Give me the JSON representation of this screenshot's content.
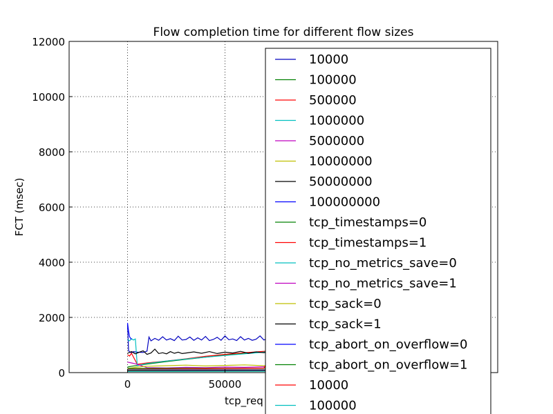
{
  "chart_data": {
    "type": "line",
    "title": "Flow completion time for different flow sizes",
    "xlabel": "tcp_req",
    "ylabel": "FCT (msec)",
    "xlim": [
      -30000,
      190000
    ],
    "ylim": [
      0,
      12000
    ],
    "x_ticks": [
      0,
      50000
    ],
    "y_ticks": [
      0,
      2000,
      4000,
      6000,
      8000,
      10000,
      12000
    ],
    "grid": true,
    "legend_placement": "right, overlapping plot",
    "series": [
      {
        "name": "10000",
        "color": "#0000bf",
        "x": [
          0,
          500,
          1000,
          2000,
          3000,
          5000,
          8000,
          10000,
          11000,
          12000,
          14000,
          16000,
          18000,
          20000,
          22000,
          24000,
          26000,
          28000,
          30000,
          32000,
          34000,
          36000,
          38000,
          40000,
          42000,
          44000,
          46000,
          48000,
          50000,
          52000,
          54000,
          56000,
          58000,
          60000,
          62000,
          64000,
          66000,
          68000,
          70000,
          72000,
          74000,
          76000,
          78000,
          80000,
          82000,
          84000,
          86000
        ],
        "y": [
          1750,
          800,
          750,
          720,
          760,
          740,
          730,
          780,
          1290,
          1150,
          1240,
          1170,
          1300,
          1180,
          1230,
          1160,
          1320,
          1180,
          1200,
          1290,
          1170,
          1260,
          1180,
          1310,
          1160,
          1200,
          1280,
          1170,
          1330,
          1190,
          1220,
          1160,
          1300,
          1180,
          1240,
          1170,
          1210,
          1330,
          1180,
          1250,
          1170,
          1220,
          1300,
          1190,
          1250,
          1210,
          1230
        ]
      },
      {
        "name": "100000",
        "color": "#008000",
        "x": [
          0,
          2000,
          5000,
          10000,
          20000,
          30000,
          40000,
          50000,
          60000,
          70000,
          80000,
          86000
        ],
        "y": [
          200,
          230,
          260,
          310,
          400,
          480,
          560,
          640,
          700,
          760,
          820,
          850
        ]
      },
      {
        "name": "500000",
        "color": "#ff0000",
        "x": [
          0,
          1000,
          2000,
          5000,
          10000,
          20000,
          30000,
          40000,
          50000,
          60000,
          70000,
          80000,
          86000
        ],
        "y": [
          650,
          600,
          700,
          300,
          350,
          420,
          500,
          590,
          660,
          720,
          770,
          820,
          850
        ]
      },
      {
        "name": "1000000",
        "color": "#00bfbf",
        "x": [
          0,
          1000,
          2000,
          3000,
          4000,
          5000,
          10000,
          20000,
          30000,
          40000,
          50000,
          60000,
          70000,
          80000,
          86000
        ],
        "y": [
          1200,
          1150,
          1230,
          1180,
          1220,
          250,
          330,
          420,
          490,
          560,
          620,
          680,
          740,
          800,
          840
        ]
      },
      {
        "name": "5000000",
        "color": "#bf00bf",
        "x": [
          0,
          2000,
          4000,
          10000,
          20000,
          30000,
          40000,
          50000,
          60000,
          70000,
          80000,
          86000
        ],
        "y": [
          380,
          350,
          320,
          180,
          170,
          190,
          180,
          200,
          190,
          210,
          200,
          210
        ]
      },
      {
        "name": "10000000",
        "color": "#bfbf00",
        "x": [
          0,
          2000,
          5000,
          10000,
          20000,
          30000,
          40000,
          50000,
          60000,
          70000,
          80000,
          86000
        ],
        "y": [
          150,
          170,
          200,
          230,
          250,
          270,
          240,
          260,
          280,
          250,
          270,
          260
        ]
      },
      {
        "name": "50000000",
        "color": "#000000",
        "x": [
          0,
          2000,
          4000,
          6000,
          8000,
          10000,
          12000,
          14000,
          16000,
          18000,
          20000,
          22000,
          24000,
          26000,
          28000,
          30000,
          34000,
          38000,
          42000,
          46000,
          50000,
          54000,
          58000,
          62000,
          66000,
          70000,
          74000,
          78000,
          82000,
          86000
        ],
        "y": [
          700,
          760,
          680,
          740,
          790,
          660,
          710,
          850,
          690,
          720,
          680,
          760,
          700,
          740,
          690,
          710,
          750,
          700,
          760,
          690,
          740,
          710,
          770,
          700,
          750,
          720,
          780,
          720,
          770,
          740
        ]
      },
      {
        "name": "100000000",
        "color": "#0000ff",
        "x": [
          0,
          500,
          1000,
          2000
        ],
        "y": [
          1800,
          1500,
          1300,
          1200
        ]
      },
      {
        "name": "tcp_timestamps=0",
        "color": "#008000",
        "x": [
          0,
          86000
        ],
        "y": [
          150,
          160
        ]
      },
      {
        "name": "tcp_timestamps=1",
        "color": "#ff0000",
        "x": [
          0,
          20000,
          40000,
          60000,
          70000,
          72000,
          74000,
          86000
        ],
        "y": [
          120,
          130,
          140,
          150,
          160,
          400,
          160,
          170
        ]
      },
      {
        "name": "tcp_no_metrics_save=0",
        "color": "#00bfbf",
        "x": [
          0,
          86000
        ],
        "y": [
          110,
          115
        ]
      },
      {
        "name": "tcp_no_metrics_save=1",
        "color": "#bf00bf",
        "x": [
          0,
          86000
        ],
        "y": [
          100,
          105
        ]
      },
      {
        "name": "tcp_sack=0",
        "color": "#bfbf00",
        "x": [
          0,
          86000
        ],
        "y": [
          90,
          95
        ]
      },
      {
        "name": "tcp_sack=1",
        "color": "#000000",
        "x": [
          0,
          86000
        ],
        "y": [
          80,
          85
        ]
      },
      {
        "name": "tcp_abort_on_overflow=0",
        "color": "#0000ff",
        "x": [
          0,
          86000
        ],
        "y": [
          70,
          75
        ]
      },
      {
        "name": "tcp_abort_on_overflow=1",
        "color": "#008000",
        "x": [
          0,
          86000
        ],
        "y": [
          60,
          65
        ]
      },
      {
        "name": "10000",
        "color": "#ff0000",
        "x": [
          0,
          86000
        ],
        "y": [
          50,
          55
        ]
      },
      {
        "name": "100000",
        "color": "#00bfbf",
        "x": [
          0,
          86000
        ],
        "y": [
          40,
          45
        ]
      }
    ]
  }
}
